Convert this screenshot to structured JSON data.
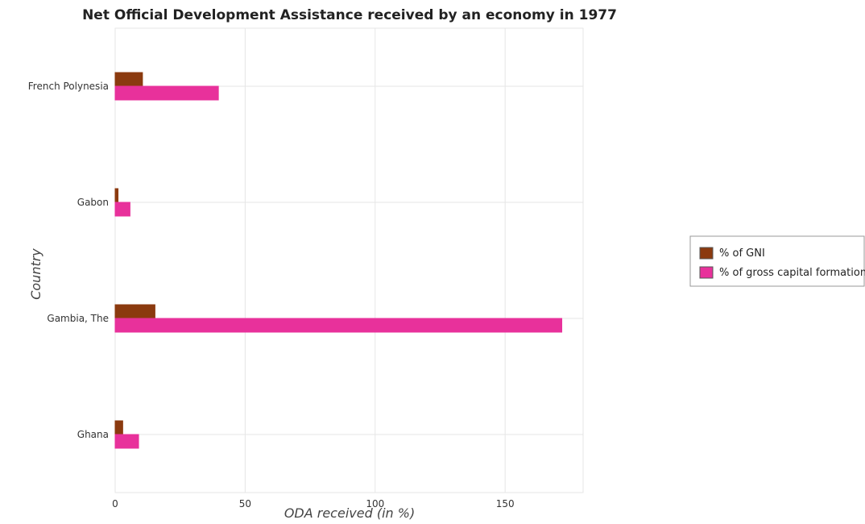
{
  "chart_data": {
    "type": "bar",
    "orientation": "horizontal",
    "title": "Net Official Development Assistance received by an economy in 1977",
    "xlabel": "ODA received (in %)",
    "ylabel": "Country",
    "categories": [
      "French Polynesia",
      "Gabon",
      "Gambia, The",
      "Ghana"
    ],
    "series": [
      {
        "name": "% of GNI",
        "color": "#8b3a0f",
        "values": [
          10.5,
          1.1,
          15.3,
          2.9
        ]
      },
      {
        "name": "% of gross capital formation",
        "color": "#e8319b",
        "values": [
          39.7,
          5.7,
          171.8,
          9.0
        ]
      }
    ],
    "xlim": [
      0,
      180
    ],
    "xticks": [
      0,
      50,
      100,
      150
    ],
    "grid": true,
    "legend_position": "right"
  }
}
